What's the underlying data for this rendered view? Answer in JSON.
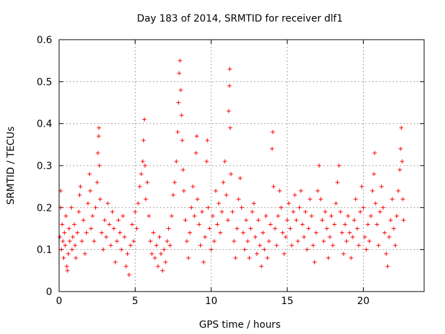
{
  "chart_data": {
    "type": "scatter",
    "title": "Day 183 of 2014, SRMTID for receiver dlf1",
    "xlabel": "GPS time / hours",
    "ylabel": "SRMTID / TECUs",
    "xlim": [
      0,
      24
    ],
    "ylim": [
      0,
      0.6
    ],
    "x_ticks": [
      0,
      5,
      10,
      15,
      20
    ],
    "x_tick_labels": [
      "0",
      "5",
      "10",
      "15",
      "20"
    ],
    "y_ticks": [
      0,
      0.1,
      0.2,
      0.3,
      0.4,
      0.5,
      0.6
    ],
    "y_tick_labels": [
      "0",
      "0.1",
      "0.2",
      "0.3",
      "0.4",
      "0.5",
      "0.6"
    ],
    "grid": true,
    "marker": "+",
    "color": "#ff0000",
    "series": [
      {
        "name": "SRMTID",
        "points": [
          [
            0.05,
            0.13
          ],
          [
            0.1,
            0.2
          ],
          [
            0.1,
            0.24
          ],
          [
            0.15,
            0.1
          ],
          [
            0.2,
            0.16
          ],
          [
            0.25,
            0.12
          ],
          [
            0.3,
            0.08
          ],
          [
            0.35,
            0.14
          ],
          [
            0.4,
            0.11
          ],
          [
            0.45,
            0.18
          ],
          [
            0.5,
            0.06
          ],
          [
            0.55,
            0.05
          ],
          [
            0.6,
            0.09
          ],
          [
            0.65,
            0.15
          ],
          [
            0.7,
            0.12
          ],
          [
            0.8,
            0.2
          ],
          [
            0.85,
            0.1
          ],
          [
            0.9,
            0.13
          ],
          [
            1.0,
            0.16
          ],
          [
            1.05,
            0.11
          ],
          [
            1.1,
            0.08
          ],
          [
            1.2,
            0.14
          ],
          [
            1.3,
            0.19
          ],
          [
            1.35,
            0.23
          ],
          [
            1.4,
            0.25
          ],
          [
            1.5,
            0.12
          ],
          [
            1.6,
            0.17
          ],
          [
            1.7,
            0.09
          ],
          [
            1.8,
            0.14
          ],
          [
            1.9,
            0.21
          ],
          [
            2.0,
            0.28
          ],
          [
            2.05,
            0.24
          ],
          [
            2.1,
            0.15
          ],
          [
            2.2,
            0.18
          ],
          [
            2.3,
            0.12
          ],
          [
            2.4,
            0.2
          ],
          [
            2.5,
            0.26
          ],
          [
            2.55,
            0.33
          ],
          [
            2.6,
            0.37
          ],
          [
            2.62,
            0.39
          ],
          [
            2.65,
            0.3
          ],
          [
            2.7,
            0.22
          ],
          [
            2.8,
            0.14
          ],
          [
            2.9,
            0.1
          ],
          [
            3.0,
            0.17
          ],
          [
            3.1,
            0.13
          ],
          [
            3.2,
            0.21
          ],
          [
            3.3,
            0.16
          ],
          [
            3.4,
            0.11
          ],
          [
            3.5,
            0.19
          ],
          [
            3.6,
            0.15
          ],
          [
            3.7,
            0.07
          ],
          [
            3.8,
            0.12
          ],
          [
            3.9,
            0.17
          ],
          [
            4.0,
            0.14
          ],
          [
            4.1,
            0.1
          ],
          [
            4.2,
            0.18
          ],
          [
            4.3,
            0.13
          ],
          [
            4.4,
            0.06
          ],
          [
            4.5,
            0.09
          ],
          [
            4.6,
            0.04
          ],
          [
            4.7,
            0.11
          ],
          [
            4.8,
            0.16
          ],
          [
            4.9,
            0.12
          ],
          [
            5.0,
            0.19
          ],
          [
            5.1,
            0.15
          ],
          [
            5.2,
            0.21
          ],
          [
            5.3,
            0.25
          ],
          [
            5.4,
            0.28
          ],
          [
            5.5,
            0.31
          ],
          [
            5.55,
            0.36
          ],
          [
            5.6,
            0.41
          ],
          [
            5.65,
            0.3
          ],
          [
            5.7,
            0.22
          ],
          [
            5.8,
            0.26
          ],
          [
            5.9,
            0.18
          ],
          [
            6.0,
            0.12
          ],
          [
            6.1,
            0.09
          ],
          [
            6.2,
            0.14
          ],
          [
            6.3,
            0.08
          ],
          [
            6.4,
            0.11
          ],
          [
            6.5,
            0.06
          ],
          [
            6.6,
            0.13
          ],
          [
            6.7,
            0.09
          ],
          [
            6.8,
            0.05
          ],
          [
            6.9,
            0.1
          ],
          [
            7.0,
            0.07
          ],
          [
            7.1,
            0.12
          ],
          [
            7.2,
            0.15
          ],
          [
            7.3,
            0.11
          ],
          [
            7.4,
            0.18
          ],
          [
            7.5,
            0.23
          ],
          [
            7.6,
            0.26
          ],
          [
            7.7,
            0.31
          ],
          [
            7.8,
            0.38
          ],
          [
            7.85,
            0.45
          ],
          [
            7.9,
            0.52
          ],
          [
            7.95,
            0.55
          ],
          [
            8.0,
            0.48
          ],
          [
            8.05,
            0.42
          ],
          [
            8.1,
            0.36
          ],
          [
            8.15,
            0.29
          ],
          [
            8.2,
            0.24
          ],
          [
            8.3,
            0.17
          ],
          [
            8.4,
            0.12
          ],
          [
            8.5,
            0.08
          ],
          [
            8.6,
            0.14
          ],
          [
            8.7,
            0.2
          ],
          [
            8.8,
            0.25
          ],
          [
            8.9,
            0.18
          ],
          [
            9.0,
            0.33
          ],
          [
            9.05,
            0.37
          ],
          [
            9.1,
            0.22
          ],
          [
            9.2,
            0.16
          ],
          [
            9.3,
            0.11
          ],
          [
            9.4,
            0.19
          ],
          [
            9.5,
            0.07
          ],
          [
            9.6,
            0.13
          ],
          [
            9.7,
            0.31
          ],
          [
            9.75,
            0.36
          ],
          [
            9.8,
            0.2
          ],
          [
            9.9,
            0.15
          ],
          [
            10.0,
            0.1
          ],
          [
            10.1,
            0.18
          ],
          [
            10.2,
            0.12
          ],
          [
            10.3,
            0.24
          ],
          [
            10.4,
            0.16
          ],
          [
            10.5,
            0.21
          ],
          [
            10.6,
            0.14
          ],
          [
            10.7,
            0.19
          ],
          [
            10.8,
            0.26
          ],
          [
            10.9,
            0.31
          ],
          [
            11.0,
            0.23
          ],
          [
            11.1,
            0.17
          ],
          [
            11.15,
            0.43
          ],
          [
            11.2,
            0.49
          ],
          [
            11.22,
            0.53
          ],
          [
            11.25,
            0.39
          ],
          [
            11.3,
            0.28
          ],
          [
            11.4,
            0.19
          ],
          [
            11.5,
            0.12
          ],
          [
            11.6,
            0.08
          ],
          [
            11.7,
            0.15
          ],
          [
            11.8,
            0.22
          ],
          [
            11.9,
            0.27
          ],
          [
            12.0,
            0.2
          ],
          [
            12.1,
            0.14
          ],
          [
            12.2,
            0.1
          ],
          [
            12.3,
            0.17
          ],
          [
            12.4,
            0.12
          ],
          [
            12.5,
            0.08
          ],
          [
            12.6,
            0.15
          ],
          [
            12.7,
            0.19
          ],
          [
            12.8,
            0.21
          ],
          [
            12.9,
            0.13
          ],
          [
            13.0,
            0.09
          ],
          [
            13.1,
            0.17
          ],
          [
            13.2,
            0.11
          ],
          [
            13.3,
            0.06
          ],
          [
            13.4,
            0.14
          ],
          [
            13.5,
            0.1
          ],
          [
            13.6,
            0.18
          ],
          [
            13.7,
            0.08
          ],
          [
            13.8,
            0.12
          ],
          [
            13.9,
            0.16
          ],
          [
            14.0,
            0.34
          ],
          [
            14.05,
            0.38
          ],
          [
            14.1,
            0.25
          ],
          [
            14.2,
            0.15
          ],
          [
            14.3,
            0.11
          ],
          [
            14.4,
            0.18
          ],
          [
            14.5,
            0.24
          ],
          [
            14.6,
            0.2
          ],
          [
            14.7,
            0.14
          ],
          [
            14.8,
            0.09
          ],
          [
            14.9,
            0.13
          ],
          [
            15.0,
            0.17
          ],
          [
            15.1,
            0.21
          ],
          [
            15.2,
            0.15
          ],
          [
            15.3,
            0.11
          ],
          [
            15.4,
            0.19
          ],
          [
            15.5,
            0.23
          ],
          [
            15.6,
            0.17
          ],
          [
            15.7,
            0.12
          ],
          [
            15.8,
            0.2
          ],
          [
            15.9,
            0.24
          ],
          [
            16.0,
            0.16
          ],
          [
            16.1,
            0.13
          ],
          [
            16.2,
            0.19
          ],
          [
            16.3,
            0.1
          ],
          [
            16.4,
            0.15
          ],
          [
            16.5,
            0.22
          ],
          [
            16.6,
            0.18
          ],
          [
            16.7,
            0.11
          ],
          [
            16.8,
            0.07
          ],
          [
            16.9,
            0.14
          ],
          [
            17.0,
            0.24
          ],
          [
            17.1,
            0.3
          ],
          [
            17.2,
            0.22
          ],
          [
            17.3,
            0.17
          ],
          [
            17.4,
            0.12
          ],
          [
            17.5,
            0.19
          ],
          [
            17.6,
            0.15
          ],
          [
            17.7,
            0.08
          ],
          [
            17.8,
            0.13
          ],
          [
            17.9,
            0.18
          ],
          [
            18.0,
            0.11
          ],
          [
            18.1,
            0.16
          ],
          [
            18.2,
            0.21
          ],
          [
            18.3,
            0.26
          ],
          [
            18.4,
            0.3
          ],
          [
            18.5,
            0.19
          ],
          [
            18.6,
            0.14
          ],
          [
            18.7,
            0.09
          ],
          [
            18.8,
            0.16
          ],
          [
            18.9,
            0.12
          ],
          [
            19.0,
            0.18
          ],
          [
            19.1,
            0.14
          ],
          [
            19.2,
            0.08
          ],
          [
            19.3,
            0.13
          ],
          [
            19.4,
            0.17
          ],
          [
            19.5,
            0.22
          ],
          [
            19.6,
            0.15
          ],
          [
            19.7,
            0.11
          ],
          [
            19.8,
            0.19
          ],
          [
            19.9,
            0.25
          ],
          [
            20.0,
            0.2
          ],
          [
            20.1,
            0.13
          ],
          [
            20.2,
            0.1
          ],
          [
            20.3,
            0.16
          ],
          [
            20.4,
            0.12
          ],
          [
            20.5,
            0.18
          ],
          [
            20.6,
            0.24
          ],
          [
            20.7,
            0.28
          ],
          [
            20.75,
            0.33
          ],
          [
            20.8,
            0.21
          ],
          [
            20.9,
            0.16
          ],
          [
            21.0,
            0.11
          ],
          [
            21.1,
            0.19
          ],
          [
            21.2,
            0.25
          ],
          [
            21.3,
            0.2
          ],
          [
            21.4,
            0.14
          ],
          [
            21.5,
            0.09
          ],
          [
            21.6,
            0.06
          ],
          [
            21.7,
            0.13
          ],
          [
            21.8,
            0.17
          ],
          [
            21.9,
            0.22
          ],
          [
            22.0,
            0.15
          ],
          [
            22.1,
            0.11
          ],
          [
            22.2,
            0.18
          ],
          [
            22.3,
            0.24
          ],
          [
            22.4,
            0.29
          ],
          [
            22.45,
            0.34
          ],
          [
            22.5,
            0.39
          ],
          [
            22.55,
            0.31
          ],
          [
            22.6,
            0.22
          ],
          [
            22.65,
            0.17
          ]
        ]
      }
    ]
  }
}
